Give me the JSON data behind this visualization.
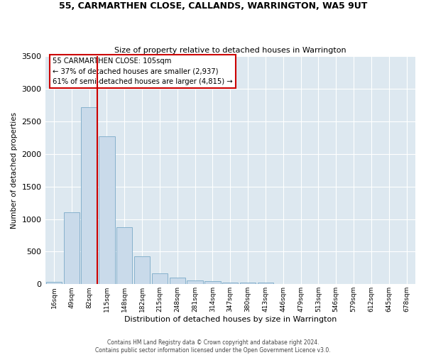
{
  "title": "55, CARMARTHEN CLOSE, CALLANDS, WARRINGTON, WA5 9UT",
  "subtitle": "Size of property relative to detached houses in Warrington",
  "xlabel": "Distribution of detached houses by size in Warrington",
  "ylabel": "Number of detached properties",
  "bar_color": "#c9daea",
  "bar_edge_color": "#7aaac8",
  "background_color": "#dde8f0",
  "grid_color": "#ffffff",
  "categories": [
    "16sqm",
    "49sqm",
    "82sqm",
    "115sqm",
    "148sqm",
    "182sqm",
    "215sqm",
    "248sqm",
    "281sqm",
    "314sqm",
    "347sqm",
    "380sqm",
    "413sqm",
    "446sqm",
    "479sqm",
    "513sqm",
    "546sqm",
    "579sqm",
    "612sqm",
    "645sqm",
    "678sqm"
  ],
  "values": [
    40,
    1100,
    2720,
    2270,
    870,
    430,
    170,
    100,
    60,
    45,
    30,
    20,
    20,
    0,
    0,
    0,
    0,
    0,
    0,
    0,
    0
  ],
  "ylim": [
    0,
    3500
  ],
  "yticks": [
    0,
    500,
    1000,
    1500,
    2000,
    2500,
    3000,
    3500
  ],
  "property_line_color": "#cc0000",
  "annotation_title": "55 CARMARTHEN CLOSE: 105sqm",
  "annotation_line1": "← 37% of detached houses are smaller (2,937)",
  "annotation_line2": "61% of semi-detached houses are larger (4,815) →",
  "annotation_box_color": "#cc0000",
  "footer1": "Contains HM Land Registry data © Crown copyright and database right 2024.",
  "footer2": "Contains public sector information licensed under the Open Government Licence v3.0."
}
